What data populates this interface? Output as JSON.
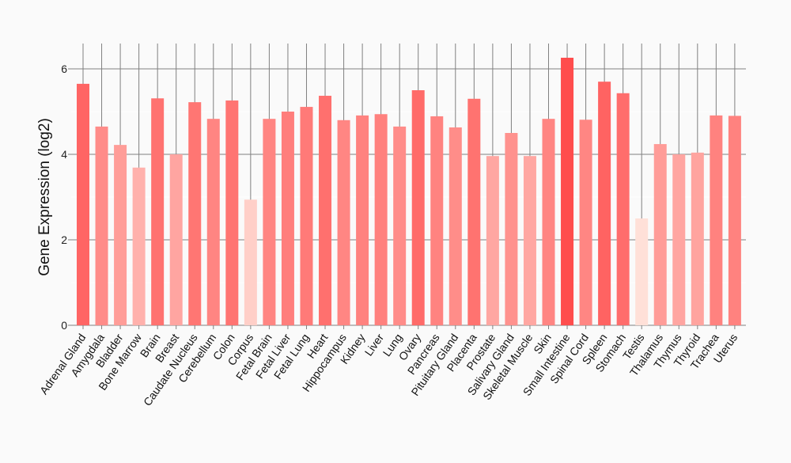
{
  "chart_data": {
    "type": "bar",
    "title": "",
    "xlabel": "",
    "ylabel": "Gene Expression (log2)",
    "ylim": [
      0,
      6.6
    ],
    "yticks": [
      0,
      2,
      4,
      6
    ],
    "grid": true,
    "categories": [
      "Adrenal Gland",
      "Amygdala",
      "Bladder",
      "Bone Marrow",
      "Brain",
      "Breast",
      "Caudate Nucleus",
      "Cerebellum",
      "Colon",
      "Corpus",
      "Fetal Brain",
      "Fetal Liver",
      "Fetal Lung",
      "Heart",
      "Hippocampus",
      "Kidney",
      "Liver",
      "Lung",
      "Ovary",
      "Pancreas",
      "Pituitary Gland",
      "Placenta",
      "Prostate",
      "Salivary Gland",
      "Skeletal Muscle",
      "Skin",
      "Small Intestine",
      "Spinal Cord",
      "Spleen",
      "Stomach",
      "Testis",
      "Thalamus",
      "Thymus",
      "Thyroid",
      "Trachea",
      "Uterus"
    ],
    "values": [
      5.65,
      4.65,
      4.22,
      3.69,
      5.31,
      4.0,
      5.22,
      4.83,
      5.26,
      2.94,
      4.83,
      5.0,
      5.11,
      5.37,
      4.8,
      4.91,
      4.94,
      4.65,
      5.5,
      4.89,
      4.63,
      5.3,
      3.96,
      4.5,
      3.96,
      4.83,
      6.26,
      4.81,
      5.7,
      5.43,
      2.5,
      4.24,
      4.0,
      4.04,
      4.91,
      4.9
    ],
    "color_low": "#ffe0d8",
    "color_high": "#ff4d4d"
  }
}
